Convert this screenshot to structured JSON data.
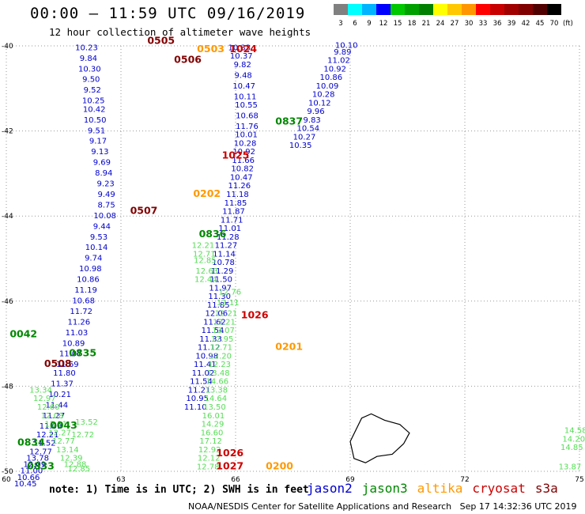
{
  "header": {
    "title": "00:00 – 11:59 UTC 09/16/2019",
    "subtitle": "12 hour collection of altimeter wave heights"
  },
  "colorbar": {
    "unit": "(ft)",
    "labels": [
      "3",
      "6",
      "9",
      "12",
      "15",
      "18",
      "21",
      "24",
      "27",
      "30",
      "33",
      "36",
      "39",
      "42",
      "45",
      "70"
    ],
    "colors": [
      "#808080",
      "#00ffff",
      "#00b4ff",
      "#0000ff",
      "#00c800",
      "#00a000",
      "#008000",
      "#ffff00",
      "#ffc800",
      "#ff9600",
      "#ff0000",
      "#c80000",
      "#a00000",
      "#800000",
      "#500000",
      "#000000"
    ]
  },
  "footnote": "note: 1) Time is in UTC; 2) SWH is in feet",
  "satellites": [
    {
      "name": "jason2",
      "color": "#0000d0"
    },
    {
      "name": "jason3",
      "color": "#008800"
    },
    {
      "name": "altika",
      "color": "#ff9900"
    },
    {
      "name": "cryosat",
      "color": "#cc0000"
    },
    {
      "name": "s3a",
      "color": "#800000"
    }
  ],
  "credit": "NOAA/NESDIS Center for Satellite Applications and Research   Sep 17 14:32:36 UTC 2019",
  "chart_data": {
    "type": "scatter",
    "title": "00:00 – 11:59 UTC 09/16/2019",
    "xlim": [
      60,
      75
    ],
    "ylim": [
      -50,
      -40
    ],
    "x_ticks": [
      "60",
      "63",
      "66",
      "69",
      "72",
      "75"
    ],
    "y_ticks": [
      "-40",
      "-42",
      "-44",
      "-46",
      "-48",
      "-50"
    ],
    "grid": true,
    "pass_labels": [
      {
        "text": "0505",
        "x": 64.05,
        "y": -39.95,
        "sat": "s3a"
      },
      {
        "text": "0503",
        "x": 65.35,
        "y": -40.15,
        "sat": "altika"
      },
      {
        "text": "0506",
        "x": 64.75,
        "y": -40.4,
        "sat": "s3a"
      },
      {
        "text": "1024",
        "x": 66.2,
        "y": -40.15,
        "sat": "cryosat"
      },
      {
        "text": "0837",
        "x": 67.4,
        "y": -41.85,
        "sat": "jason3"
      },
      {
        "text": "1025",
        "x": 66.0,
        "y": -42.65,
        "sat": "cryosat"
      },
      {
        "text": "0507",
        "x": 63.6,
        "y": -43.95,
        "sat": "s3a"
      },
      {
        "text": "0202",
        "x": 65.25,
        "y": -43.55,
        "sat": "altika"
      },
      {
        "text": "0836",
        "x": 65.4,
        "y": -44.5,
        "sat": "jason3"
      },
      {
        "text": "1026",
        "x": 66.5,
        "y": -46.4,
        "sat": "cryosat"
      },
      {
        "text": "0042",
        "x": 60.45,
        "y": -46.85,
        "sat": "jason3"
      },
      {
        "text": "0201",
        "x": 67.4,
        "y": -47.15,
        "sat": "altika"
      },
      {
        "text": "0835",
        "x": 62.0,
        "y": -47.3,
        "sat": "jason3"
      },
      {
        "text": "0508",
        "x": 61.35,
        "y": -47.55,
        "sat": "s3a"
      },
      {
        "text": "0043",
        "x": 61.5,
        "y": -49.0,
        "sat": "jason3"
      },
      {
        "text": "0834",
        "x": 60.65,
        "y": -49.4,
        "sat": "jason3"
      },
      {
        "text": "0833",
        "x": 60.9,
        "y": -49.95,
        "sat": "jason3"
      },
      {
        "text": "1026",
        "x": 65.85,
        "y": -49.65,
        "sat": "cryosat"
      },
      {
        "text": "1027",
        "x": 65.85,
        "y": -49.95,
        "sat": "cryosat"
      },
      {
        "text": "0200",
        "x": 67.15,
        "y": -49.95,
        "sat": "altika"
      }
    ],
    "series": [
      {
        "sat": "s3a",
        "band": "12",
        "x": [
          62.1,
          62.15,
          62.18,
          62.22,
          62.25,
          62.28,
          62.3,
          62.32,
          62.36,
          62.4,
          62.45,
          62.5,
          62.55,
          62.6,
          62.62,
          62.62,
          62.58,
          62.5,
          62.42,
          62.36,
          62.28,
          62.2,
          62.14,
          62.08,
          62.02,
          61.96,
          61.9,
          61.84,
          61.76,
          61.68,
          61.6,
          61.52,
          61.46,
          61.4,
          61.32,
          61.24,
          61.16,
          61.08,
          61.0,
          60.9,
          60.82,
          60.74,
          60.66,
          60.58,
          60.5
        ],
        "y": [
          -40.1,
          -40.35,
          -40.6,
          -40.85,
          -41.1,
          -41.35,
          -41.55,
          -41.8,
          -42.05,
          -42.3,
          -42.55,
          -42.8,
          -43.05,
          -43.3,
          -43.55,
          -43.8,
          -44.05,
          -44.3,
          -44.55,
          -44.8,
          -45.05,
          -45.3,
          -45.55,
          -45.8,
          -46.05,
          -46.3,
          -46.55,
          -46.8,
          -47.05,
          -47.3,
          -47.55,
          -47.75,
          -48.0,
          -48.25,
          -48.5,
          -48.75,
          -49.0,
          -49.2,
          -49.4,
          -49.6,
          -49.75,
          -49.9,
          -50.05,
          -50.2,
          -50.35
        ],
        "values": [
          10.23,
          9.84,
          10.3,
          9.5,
          9.52,
          10.25,
          10.42,
          10.5,
          9.51,
          9.17,
          9.13,
          9.69,
          8.94,
          9.23,
          9.49,
          8.75,
          10.08,
          9.44,
          9.53,
          10.14,
          9.74,
          10.98,
          10.86,
          11.19,
          10.68,
          11.72,
          11.26,
          11.03,
          10.89,
          11.07,
          11.69,
          11.8,
          11.37,
          10.21,
          11.44,
          11.27,
          11.09,
          12.21,
          11.52,
          12.77,
          13.78,
          12.09,
          11.0,
          10.66,
          10.45
        ]
      },
      {
        "sat": "jason2",
        "band": "12",
        "x": [
          66.1,
          66.15,
          66.18,
          66.2,
          66.22,
          66.25,
          66.28,
          66.3,
          66.3,
          66.28,
          66.25,
          66.22,
          66.2,
          66.18,
          66.15,
          66.1,
          66.05,
          66.0,
          65.95,
          65.9,
          65.85,
          65.8,
          65.75,
          65.7,
          65.68,
          65.65,
          65.62,
          65.6,
          65.58,
          65.55,
          65.5,
          65.45,
          65.4,
          65.35,
          65.3,
          65.25,
          65.2,
          65.15,
          65.1,
          65.05,
          65.0,
          64.95
        ],
        "y": [
          -40.1,
          -40.3,
          -40.5,
          -40.75,
          -41.0,
          -41.25,
          -41.45,
          -41.7,
          -41.95,
          -42.15,
          -42.35,
          -42.55,
          -42.75,
          -42.95,
          -43.15,
          -43.35,
          -43.55,
          -43.75,
          -43.95,
          -44.15,
          -44.35,
          -44.55,
          -44.75,
          -44.95,
          -45.15,
          -45.35,
          -45.55,
          -45.75,
          -45.95,
          -46.15,
          -46.35,
          -46.55,
          -46.75,
          -46.95,
          -47.15,
          -47.35,
          -47.55,
          -47.75,
          -47.95,
          -48.15,
          -48.35,
          -48.55
        ],
        "values": [
          10.33,
          10.37,
          9.82,
          9.48,
          10.47,
          10.11,
          10.55,
          10.68,
          11.76,
          10.01,
          10.28,
          10.92,
          11.66,
          10.82,
          10.47,
          11.26,
          11.18,
          11.85,
          11.87,
          11.71,
          11.01,
          11.28,
          11.27,
          11.14,
          10.78,
          11.29,
          11.5,
          11.97,
          11.3,
          11.85,
          12.06,
          11.62,
          11.54,
          11.33,
          11.12,
          10.98,
          11.41,
          11.02,
          11.54,
          11.21,
          10.95,
          11.1
        ]
      },
      {
        "sat": "jason3",
        "band": "15",
        "x": [
          65.85,
          65.8,
          65.75,
          65.7,
          65.68,
          65.65,
          65.62,
          65.6,
          65.58,
          65.55,
          65.52,
          65.5,
          65.48,
          65.45,
          65.42,
          65.4,
          65.38,
          65.35,
          65.32,
          65.3,
          65.28,
          65.25,
          65.22,
          65.2,
          65.18,
          65.15
        ],
        "y": [
          -45.85,
          -46.1,
          -46.35,
          -46.55,
          -46.75,
          -46.95,
          -47.15,
          -47.35,
          -47.55,
          -47.75,
          -47.95,
          -48.15,
          -48.35,
          -48.55,
          -48.75,
          -48.95,
          -49.15,
          -49.35,
          -49.55,
          -49.75,
          -49.95,
          -45.35,
          -45.55,
          -45.1,
          -44.95,
          -44.75
        ],
        "values": [
          12.76,
          12.11,
          12.21,
          13.21,
          13.07,
          12.95,
          12.71,
          12.2,
          12.23,
          13.48,
          14.66,
          13.38,
          14.64,
          13.5,
          16.01,
          14.29,
          16.6,
          17.12,
          12.92,
          12.12,
          12.78,
          12.63,
          12.44,
          12.85,
          12.71,
          12.21
        ]
      },
      {
        "sat": "jason3",
        "band": "12",
        "x": [
          60.9,
          61.0,
          61.1,
          61.2,
          61.3,
          61.4,
          61.5,
          61.6,
          61.7,
          61.8,
          61.9,
          62.0,
          62.1
        ],
        "y": [
          -48.15,
          -48.35,
          -48.55,
          -48.75,
          -48.95,
          -49.15,
          -49.35,
          -49.55,
          -49.75,
          -49.9,
          -50.0,
          -49.2,
          -48.9
        ],
        "values": [
          13.34,
          12.97,
          12.6,
          12.08,
          12.21,
          12.27,
          12.77,
          13.14,
          12.39,
          12.88,
          12.85,
          12.72,
          13.52
        ]
      },
      {
        "sat": "jason2-east",
        "band": "12",
        "x": [
          68.9,
          68.8,
          68.7,
          68.6,
          68.5,
          68.4,
          68.3,
          68.2,
          68.1,
          68.0,
          67.9,
          67.8,
          67.7
        ],
        "y": [
          -40.05,
          -40.2,
          -40.4,
          -40.6,
          -40.8,
          -41.0,
          -41.2,
          -41.4,
          -41.6,
          -41.8,
          -42.0,
          -42.2,
          -42.4
        ],
        "values": [
          10.1,
          9.89,
          11.02,
          10.92,
          10.86,
          10.09,
          10.28,
          10.12,
          9.96,
          9.83,
          10.54,
          10.27,
          10.35
        ]
      },
      {
        "sat": "jason3-far",
        "band": "15",
        "x": [
          74.9,
          74.85,
          74.8,
          74.75
        ],
        "y": [
          -49.1,
          -49.3,
          -49.5,
          -49.95
        ],
        "values": [
          14.58,
          14.2,
          14.85,
          13.87
        ]
      }
    ]
  }
}
